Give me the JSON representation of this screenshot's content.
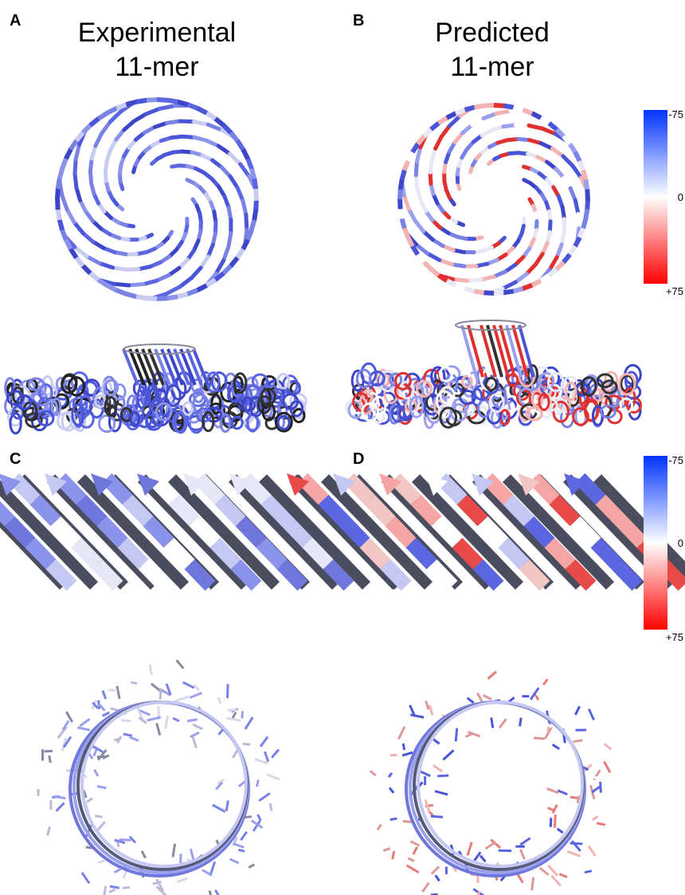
{
  "panels": [
    {
      "label": "A",
      "title": [
        "Experimental",
        "11-mer"
      ]
    },
    {
      "label": "B",
      "title": [
        "Predicted",
        "11-mer"
      ]
    },
    {
      "label": "C"
    },
    {
      "label": "D"
    }
  ],
  "colorbars": [
    {
      "labels": [
        "-75",
        "0",
        "+75"
      ]
    },
    {
      "labels": [
        "-75",
        "0",
        "+75"
      ]
    }
  ]
}
